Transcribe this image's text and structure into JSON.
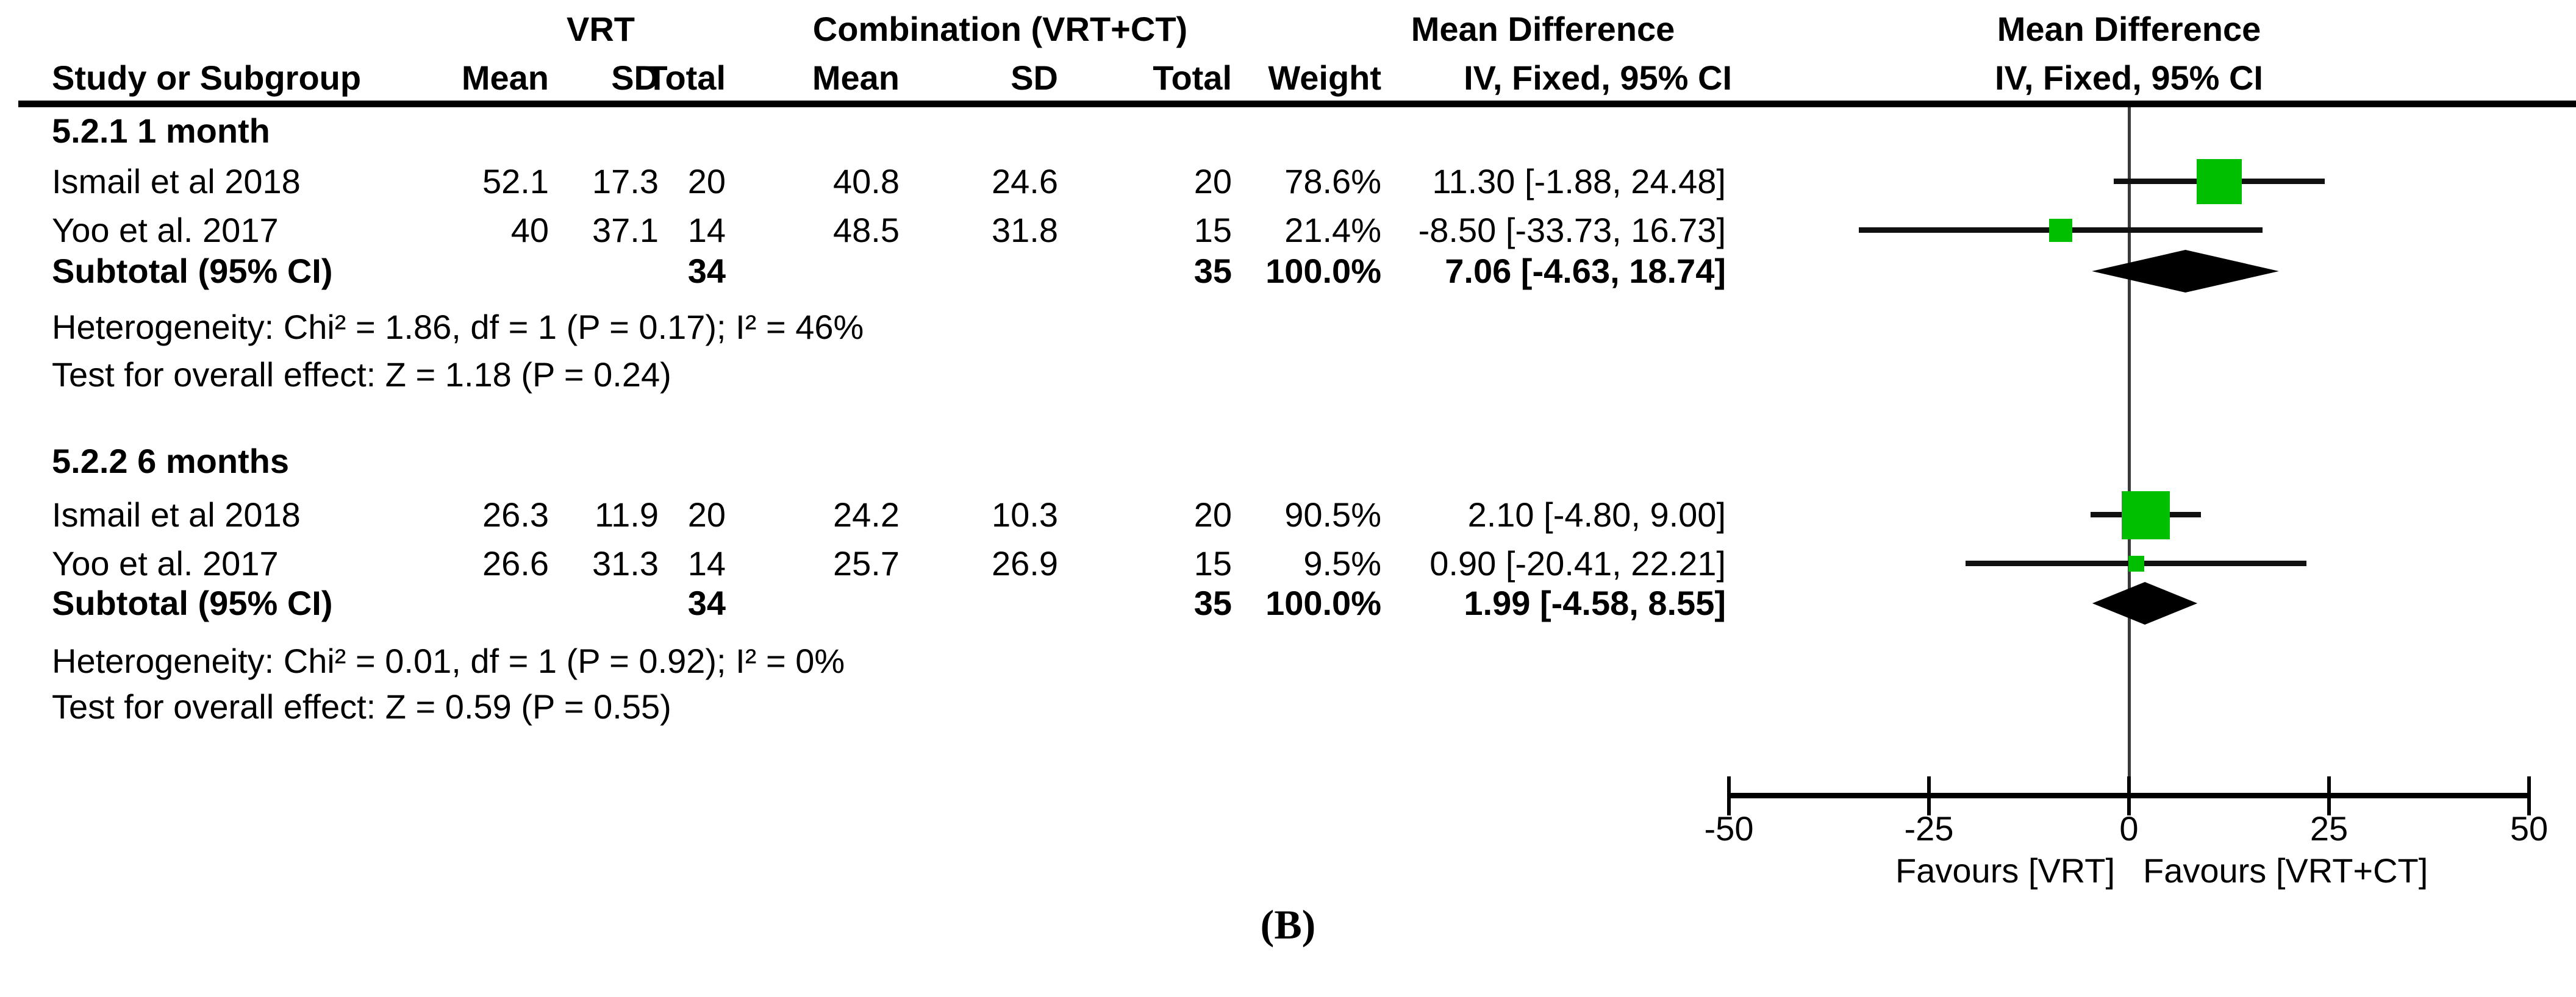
{
  "caption": "(B)",
  "header": {
    "group_vrt": "VRT",
    "group_combination": "Combination (VRT+CT)",
    "md_text_col": "Mean Difference",
    "md_plot_col": "Mean Difference",
    "study": "Study or Subgroup",
    "mean1": "Mean",
    "sd1": "SD",
    "total1": "Total",
    "mean2": "Mean",
    "sd2": "SD",
    "total2": "Total",
    "weight": "Weight",
    "ci_text_col": "IV, Fixed, 95% CI",
    "ci_plot_col": "IV, Fixed, 95% CI"
  },
  "sections": [
    {
      "label": "5.2.1 1 month",
      "rows": [
        {
          "study": "Ismail et al 2018",
          "mean1": "52.1",
          "sd1": "17.3",
          "total1": "20",
          "mean2": "40.8",
          "sd2": "24.6",
          "total2": "20",
          "weight": "78.6%",
          "ci": "11.30 [-1.88, 24.48]"
        },
        {
          "study": "Yoo et al. 2017",
          "mean1": "40",
          "sd1": "37.1",
          "total1": "14",
          "mean2": "48.5",
          "sd2": "31.8",
          "total2": "15",
          "weight": "21.4%",
          "ci": "-8.50 [-33.73, 16.73]"
        }
      ],
      "subtotal": {
        "label": "Subtotal (95% CI)",
        "total1": "34",
        "total2": "35",
        "weight": "100.0%",
        "ci": "7.06 [-4.63, 18.74]"
      },
      "heterogeneity": "Heterogeneity: Chi² = 1.86, df = 1 (P = 0.17); I² = 46%",
      "overall_effect": "Test for overall effect: Z = 1.18 (P = 0.24)"
    },
    {
      "label": "5.2.2 6 months",
      "rows": [
        {
          "study": "Ismail et al 2018",
          "mean1": "26.3",
          "sd1": "11.9",
          "total1": "20",
          "mean2": "24.2",
          "sd2": "10.3",
          "total2": "20",
          "weight": "90.5%",
          "ci": "2.10 [-4.80, 9.00]"
        },
        {
          "study": "Yoo et al. 2017",
          "mean1": "26.6",
          "sd1": "31.3",
          "total1": "14",
          "mean2": "25.7",
          "sd2": "26.9",
          "total2": "15",
          "weight": "9.5%",
          "ci": "0.90 [-20.41, 22.21]"
        }
      ],
      "subtotal": {
        "label": "Subtotal (95% CI)",
        "total1": "34",
        "total2": "35",
        "weight": "100.0%",
        "ci": "1.99 [-4.58, 8.55]"
      },
      "heterogeneity": "Heterogeneity: Chi² = 0.01, df = 1 (P = 0.92); I² = 0%",
      "overall_effect": "Test for overall effect: Z = 0.59 (P = 0.55)"
    }
  ],
  "chart_data": {
    "type": "forest",
    "effect_measure": "Mean Difference",
    "model": "IV, Fixed, 95% CI",
    "axis": {
      "min": -50,
      "max": 50,
      "ticks": [
        -50,
        -25,
        0,
        25,
        50
      ]
    },
    "favours_left": "Favours [VRT]",
    "favours_right": "Favours [VRT+CT]",
    "marker_color": "#00bf00",
    "diamond_color": "#000000",
    "subgroups": [
      {
        "name": "5.2.1 1 month",
        "studies": [
          {
            "study": "Ismail et al 2018",
            "md": 11.3,
            "ci_low": -1.88,
            "ci_high": 24.48,
            "weight": 78.6
          },
          {
            "study": "Yoo et al. 2017",
            "md": -8.5,
            "ci_low": -33.73,
            "ci_high": 16.73,
            "weight": 21.4
          }
        ],
        "subtotal": {
          "md": 7.06,
          "ci_low": -4.63,
          "ci_high": 18.74
        }
      },
      {
        "name": "5.2.2 6 months",
        "studies": [
          {
            "study": "Ismail et al 2018",
            "md": 2.1,
            "ci_low": -4.8,
            "ci_high": 9.0,
            "weight": 90.5
          },
          {
            "study": "Yoo et al. 2017",
            "md": 0.9,
            "ci_low": -20.41,
            "ci_high": 22.21,
            "weight": 9.5
          }
        ],
        "subtotal": {
          "md": 1.99,
          "ci_low": -4.58,
          "ci_high": 8.55
        }
      }
    ]
  }
}
